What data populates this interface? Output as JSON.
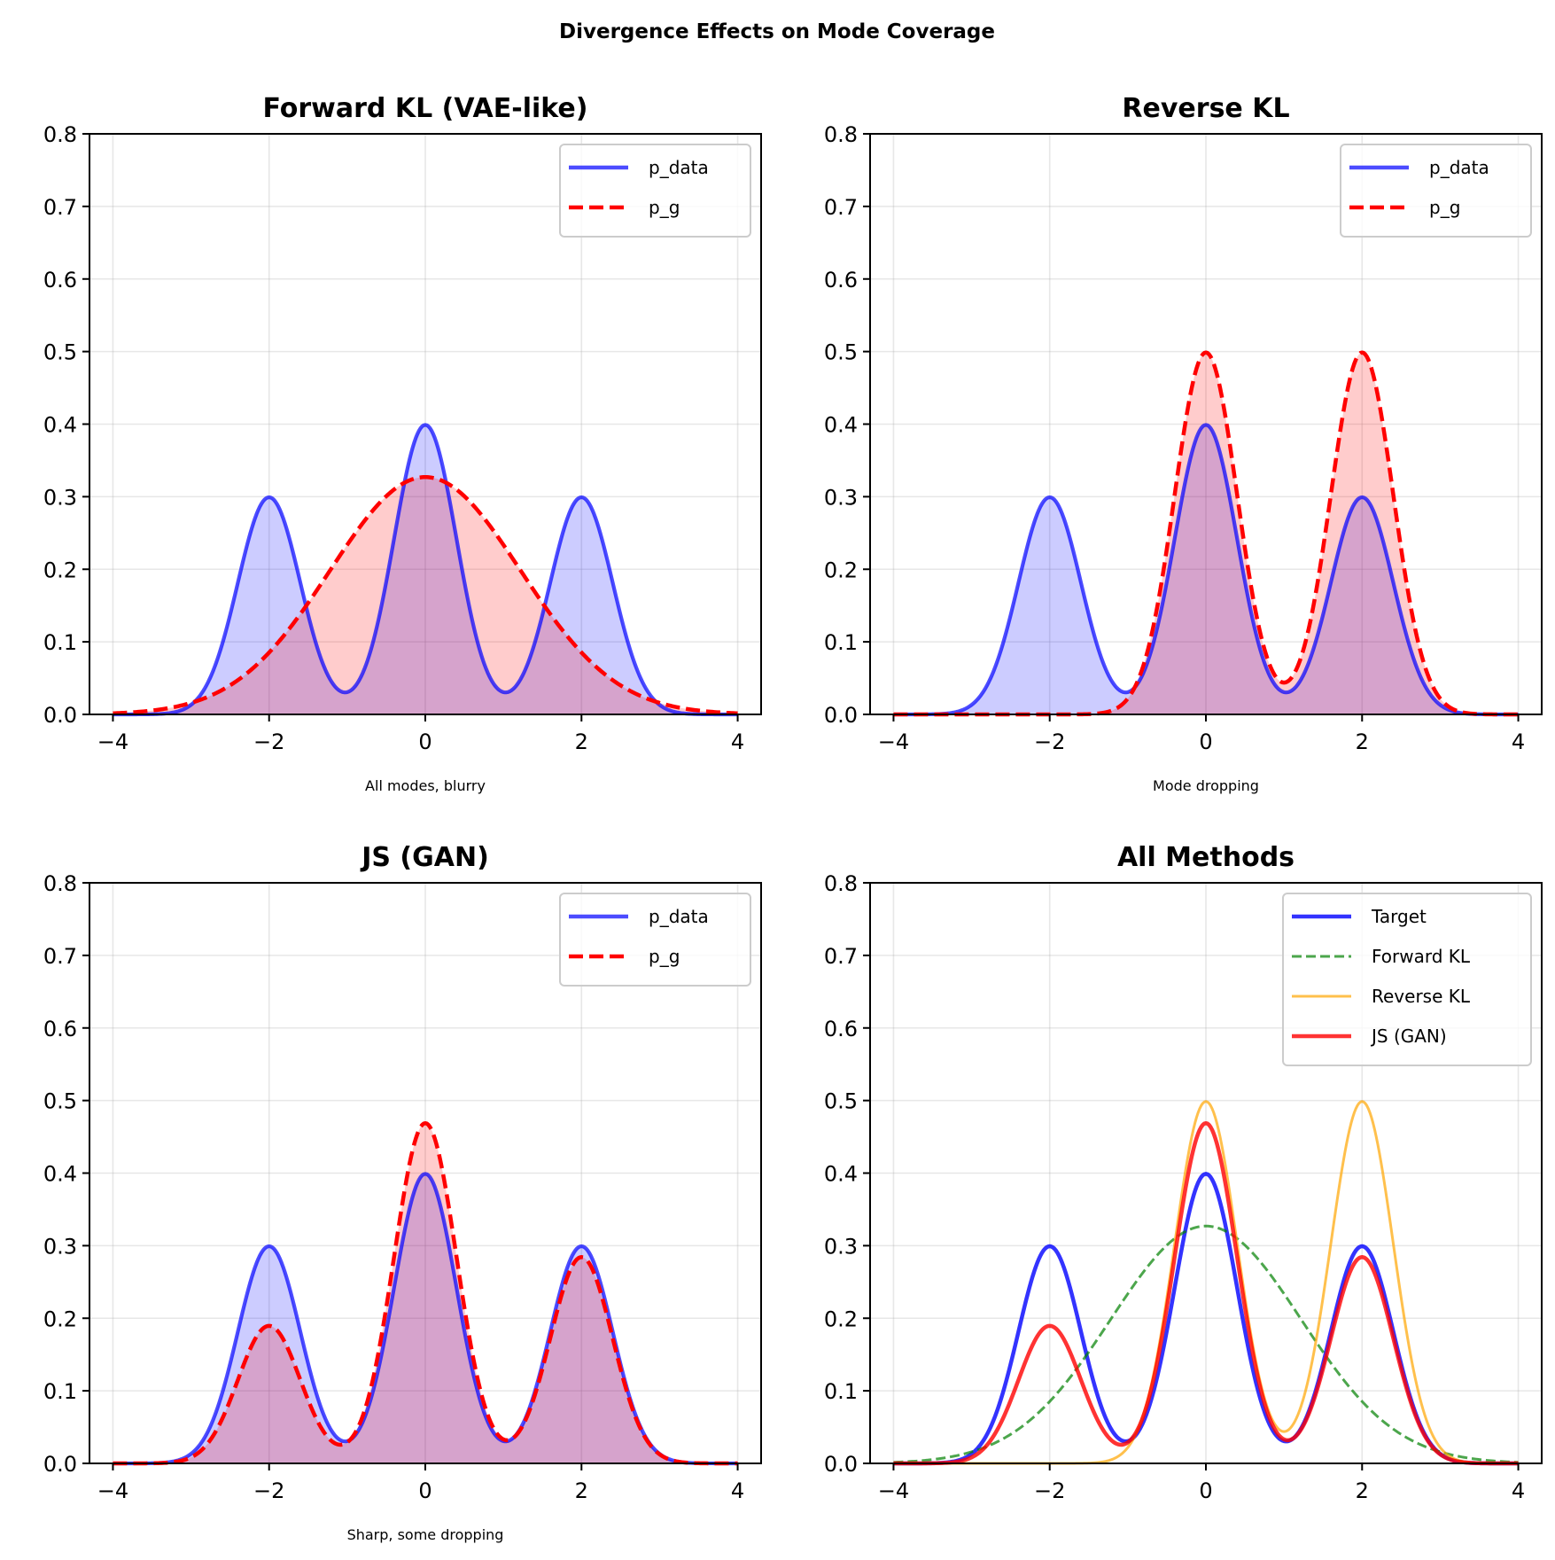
{
  "figure": {
    "suptitle": "Divergence Effects on Mode Coverage"
  },
  "chart_data": [
    {
      "type": "area",
      "title": "Forward KL (VAE-like)",
      "xlabel": "All modes, blurry",
      "ylabel": "",
      "xlim": [
        -4.3,
        4.3
      ],
      "ylim": [
        0,
        0.8
      ],
      "xticks": [
        -4,
        -2,
        0,
        2,
        4
      ],
      "xtick_labels": [
        "−4",
        "−2",
        "0",
        "2",
        "4"
      ],
      "yticks": [
        0.0,
        0.1,
        0.2,
        0.3,
        0.4,
        0.5,
        0.6,
        0.7,
        0.8
      ],
      "ytick_labels": [
        "0.0",
        "0.1",
        "0.2",
        "0.3",
        "0.4",
        "0.5",
        "0.6",
        "0.7",
        "0.8"
      ],
      "x_range": [
        -4,
        4
      ],
      "grid": true,
      "legend_position": "top-right",
      "series": [
        {
          "name": "p_data",
          "color": "#0000ff",
          "style": "solid",
          "fill": true,
          "fill_alpha": 0.2,
          "line_alpha": 0.7,
          "mixture": [
            {
              "mean": -2,
              "sd": 0.4,
              "weight": 0.3
            },
            {
              "mean": 0,
              "sd": 0.4,
              "weight": 0.4
            },
            {
              "mean": 2,
              "sd": 0.4,
              "weight": 0.3
            }
          ],
          "peaks": [
            {
              "x": -2,
              "y": 0.31
            },
            {
              "x": 0,
              "y": 0.41
            },
            {
              "x": 2,
              "y": 0.31
            }
          ]
        },
        {
          "name": "p_g",
          "color": "#ff0000",
          "style": "dashed",
          "fill": true,
          "fill_alpha": 0.2,
          "line_alpha": 1.0,
          "mixture": [
            {
              "mean": 0,
              "sd": 1.22,
              "weight": 1.0
            }
          ],
          "peaks": [
            {
              "x": 0,
              "y": 0.327
            }
          ]
        }
      ]
    },
    {
      "type": "area",
      "title": "Reverse KL",
      "xlabel": "Mode dropping",
      "ylabel": "",
      "xlim": [
        -4.3,
        4.3
      ],
      "ylim": [
        0,
        0.8
      ],
      "xticks": [
        -4,
        -2,
        0,
        2,
        4
      ],
      "xtick_labels": [
        "−4",
        "−2",
        "0",
        "2",
        "4"
      ],
      "yticks": [
        0.0,
        0.1,
        0.2,
        0.3,
        0.4,
        0.5,
        0.6,
        0.7,
        0.8
      ],
      "ytick_labels": [
        "0.0",
        "0.1",
        "0.2",
        "0.3",
        "0.4",
        "0.5",
        "0.6",
        "0.7",
        "0.8"
      ],
      "x_range": [
        -4,
        4
      ],
      "grid": true,
      "legend_position": "top-right",
      "series": [
        {
          "name": "p_data",
          "color": "#0000ff",
          "style": "solid",
          "fill": true,
          "fill_alpha": 0.2,
          "line_alpha": 0.7,
          "mixture": [
            {
              "mean": -2,
              "sd": 0.4,
              "weight": 0.3
            },
            {
              "mean": 0,
              "sd": 0.4,
              "weight": 0.4
            },
            {
              "mean": 2,
              "sd": 0.4,
              "weight": 0.3
            }
          ],
          "peaks": [
            {
              "x": -2,
              "y": 0.31
            },
            {
              "x": 0,
              "y": 0.41
            },
            {
              "x": 2,
              "y": 0.31
            }
          ]
        },
        {
          "name": "p_g",
          "color": "#ff0000",
          "style": "dashed",
          "fill": true,
          "fill_alpha": 0.2,
          "line_alpha": 1.0,
          "mixture": [
            {
              "mean": 0,
              "sd": 0.4,
              "weight": 0.5
            },
            {
              "mean": 2,
              "sd": 0.4,
              "weight": 0.5
            }
          ],
          "peaks": [
            {
              "x": 0,
              "y": 0.515
            },
            {
              "x": 2,
              "y": 0.515
            }
          ]
        }
      ]
    },
    {
      "type": "area",
      "title": "JS (GAN)",
      "xlabel": "Sharp, some dropping",
      "ylabel": "",
      "xlim": [
        -4.3,
        4.3
      ],
      "ylim": [
        0,
        0.8
      ],
      "xticks": [
        -4,
        -2,
        0,
        2,
        4
      ],
      "xtick_labels": [
        "−4",
        "−2",
        "0",
        "2",
        "4"
      ],
      "yticks": [
        0.0,
        0.1,
        0.2,
        0.3,
        0.4,
        0.5,
        0.6,
        0.7,
        0.8
      ],
      "ytick_labels": [
        "0.0",
        "0.1",
        "0.2",
        "0.3",
        "0.4",
        "0.5",
        "0.6",
        "0.7",
        "0.8"
      ],
      "x_range": [
        -4,
        4
      ],
      "grid": true,
      "legend_position": "top-right",
      "series": [
        {
          "name": "p_data",
          "color": "#0000ff",
          "style": "solid",
          "fill": true,
          "fill_alpha": 0.2,
          "line_alpha": 0.7,
          "mixture": [
            {
              "mean": -2,
              "sd": 0.4,
              "weight": 0.3
            },
            {
              "mean": 0,
              "sd": 0.4,
              "weight": 0.4
            },
            {
              "mean": 2,
              "sd": 0.4,
              "weight": 0.3
            }
          ],
          "peaks": [
            {
              "x": -2,
              "y": 0.31
            },
            {
              "x": 0,
              "y": 0.41
            },
            {
              "x": 2,
              "y": 0.31
            }
          ]
        },
        {
          "name": "p_g",
          "color": "#ff0000",
          "style": "dashed",
          "fill": true,
          "fill_alpha": 0.2,
          "line_alpha": 1.0,
          "mixture": [
            {
              "mean": -2,
              "sd": 0.4,
              "weight": 0.19
            },
            {
              "mean": 0,
              "sd": 0.4,
              "weight": 0.47
            },
            {
              "mean": 2,
              "sd": 0.4,
              "weight": 0.285
            }
          ],
          "peaks": [
            {
              "x": -2,
              "y": 0.19
            },
            {
              "x": 0,
              "y": 0.478
            },
            {
              "x": 2,
              "y": 0.287
            }
          ]
        }
      ]
    },
    {
      "type": "line",
      "title": "All Methods",
      "xlabel": "",
      "ylabel": "",
      "xlim": [
        -4.3,
        4.3
      ],
      "ylim": [
        0,
        0.8
      ],
      "xticks": [
        -4,
        -2,
        0,
        2,
        4
      ],
      "xtick_labels": [
        "−4",
        "−2",
        "0",
        "2",
        "4"
      ],
      "yticks": [
        0.0,
        0.1,
        0.2,
        0.3,
        0.4,
        0.5,
        0.6,
        0.7,
        0.8
      ],
      "ytick_labels": [
        "0.0",
        "0.1",
        "0.2",
        "0.3",
        "0.4",
        "0.5",
        "0.6",
        "0.7",
        "0.8"
      ],
      "x_range": [
        -4,
        4
      ],
      "grid": true,
      "legend_position": "top-right",
      "series": [
        {
          "name": "Target",
          "color": "#0000ff",
          "style": "solid",
          "fill": false,
          "line_alpha": 0.8,
          "weight_class": "thick",
          "mixture": [
            {
              "mean": -2,
              "sd": 0.4,
              "weight": 0.3
            },
            {
              "mean": 0,
              "sd": 0.4,
              "weight": 0.4
            },
            {
              "mean": 2,
              "sd": 0.4,
              "weight": 0.3
            }
          ]
        },
        {
          "name": "Forward KL",
          "color": "#008000",
          "style": "dashed",
          "fill": false,
          "line_alpha": 0.7,
          "weight_class": "thin",
          "mixture": [
            {
              "mean": 0,
              "sd": 1.22,
              "weight": 1.0
            }
          ]
        },
        {
          "name": "Reverse KL",
          "color": "#ffa500",
          "style": "solid",
          "fill": false,
          "line_alpha": 0.7,
          "weight_class": "thin",
          "mixture": [
            {
              "mean": 0,
              "sd": 0.4,
              "weight": 0.5
            },
            {
              "mean": 2,
              "sd": 0.4,
              "weight": 0.5
            }
          ]
        },
        {
          "name": "JS (GAN)",
          "color": "#ff0000",
          "style": "solid",
          "fill": false,
          "line_alpha": 0.8,
          "weight_class": "thick",
          "mixture": [
            {
              "mean": -2,
              "sd": 0.4,
              "weight": 0.19
            },
            {
              "mean": 0,
              "sd": 0.4,
              "weight": 0.47
            },
            {
              "mean": 2,
              "sd": 0.4,
              "weight": 0.285
            }
          ]
        }
      ]
    }
  ]
}
